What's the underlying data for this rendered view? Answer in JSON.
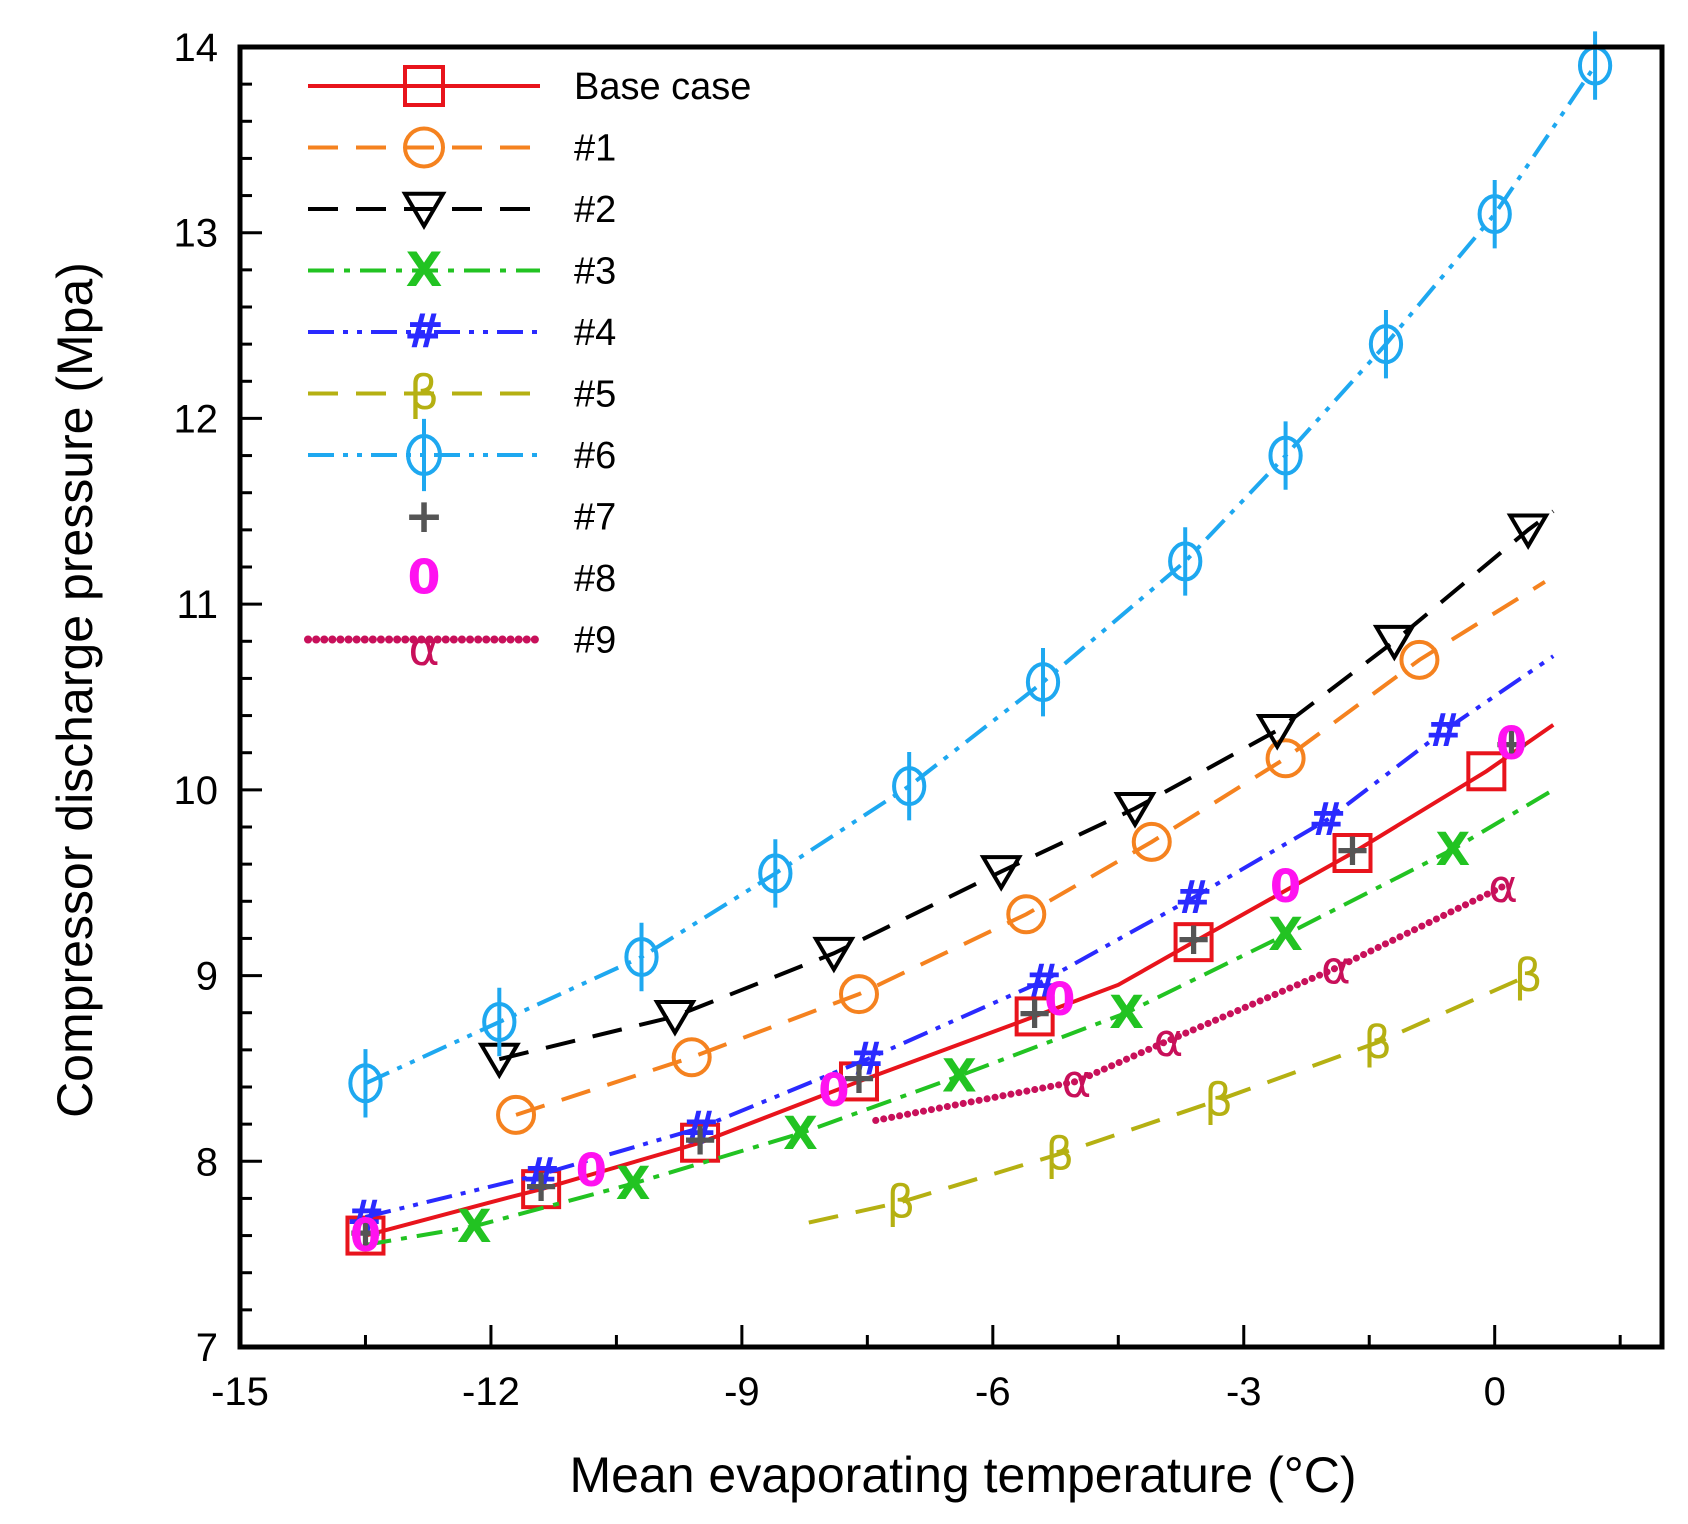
{
  "chart_data": {
    "type": "line",
    "xlabel": "Mean evaporating temperature (°C)",
    "ylabel": "Compressor discharge pressure (Mpa)",
    "xlim": [
      -15,
      2
    ],
    "ylim": [
      7,
      14
    ],
    "xticks": [
      -15,
      -12,
      -9,
      -6,
      -3,
      0
    ],
    "yticks": [
      7,
      8,
      9,
      10,
      11,
      12,
      13,
      14
    ],
    "grid": false,
    "legend_position": "top-left",
    "series": [
      {
        "name": "Base case",
        "color": "#e8141c",
        "dash": "solid",
        "marker": "square",
        "line": [
          [
            -13.5,
            7.6
          ],
          [
            -12,
            7.78
          ],
          [
            -11.4,
            7.85
          ],
          [
            -9.5,
            8.1
          ],
          [
            -7.6,
            8.43
          ],
          [
            -5.5,
            8.78
          ],
          [
            -4.5,
            8.95
          ],
          [
            -3.6,
            9.18
          ],
          [
            -1.7,
            9.66
          ],
          [
            -0.1,
            10.1
          ],
          [
            0.7,
            10.35
          ]
        ],
        "markers": [
          [
            -13.5,
            7.6
          ],
          [
            -11.4,
            7.85
          ],
          [
            -9.5,
            8.1
          ],
          [
            -7.6,
            8.43
          ],
          [
            -5.5,
            8.78
          ],
          [
            -3.6,
            9.18
          ],
          [
            -1.7,
            9.66
          ],
          [
            -0.1,
            10.1
          ]
        ]
      },
      {
        "name": "#1",
        "color": "#f5821f",
        "dash": "long",
        "marker": "circle",
        "line": [
          [
            -11.7,
            8.25
          ],
          [
            -9.6,
            8.56
          ],
          [
            -7.6,
            8.9
          ],
          [
            -5.6,
            9.33
          ],
          [
            -4.1,
            9.72
          ],
          [
            -2.5,
            10.17
          ],
          [
            -0.9,
            10.7
          ],
          [
            0.6,
            11.12
          ]
        ],
        "markers": [
          [
            -11.7,
            8.25
          ],
          [
            -9.6,
            8.56
          ],
          [
            -7.6,
            8.9
          ],
          [
            -5.6,
            9.33
          ],
          [
            -4.1,
            9.72
          ],
          [
            -2.5,
            10.17
          ],
          [
            -0.9,
            10.7
          ]
        ]
      },
      {
        "name": "#2",
        "color": "#000000",
        "dash": "long",
        "marker": "triangle-down",
        "line": [
          [
            -11.9,
            8.55
          ],
          [
            -9.8,
            8.78
          ],
          [
            -7.9,
            9.12
          ],
          [
            -5.9,
            9.56
          ],
          [
            -4.3,
            9.9
          ],
          [
            -2.6,
            10.32
          ],
          [
            -1.2,
            10.8
          ],
          [
            0.4,
            11.4
          ],
          [
            0.7,
            11.5
          ]
        ],
        "markers": [
          [
            -11.9,
            8.55
          ],
          [
            -9.8,
            8.78
          ],
          [
            -7.9,
            9.12
          ],
          [
            -5.9,
            9.56
          ],
          [
            -4.3,
            9.9
          ],
          [
            -2.6,
            10.32
          ],
          [
            -1.2,
            10.8
          ],
          [
            0.4,
            11.4
          ]
        ]
      },
      {
        "name": "#3",
        "color": "#22c322",
        "dash": "dashdot",
        "marker": "X",
        "glyph": "X",
        "line": [
          [
            -13.5,
            7.55
          ],
          [
            -12.2,
            7.65
          ],
          [
            -10.3,
            7.88
          ],
          [
            -8.3,
            8.15
          ],
          [
            -6.4,
            8.46
          ],
          [
            -4.4,
            8.8
          ],
          [
            -2.5,
            9.22
          ],
          [
            -0.5,
            9.68
          ],
          [
            0.7,
            10.0
          ]
        ],
        "markers": [
          [
            -12.2,
            7.65
          ],
          [
            -10.3,
            7.88
          ],
          [
            -8.3,
            8.15
          ],
          [
            -6.4,
            8.46
          ],
          [
            -4.4,
            8.8
          ],
          [
            -2.5,
            9.22
          ],
          [
            -0.5,
            9.68
          ]
        ]
      },
      {
        "name": "#4",
        "color": "#2a2aff",
        "dash": "dashdotdot",
        "marker": "hash",
        "glyph": "#",
        "line": [
          [
            -13.5,
            7.7
          ],
          [
            -11.4,
            7.93
          ],
          [
            -9.5,
            8.18
          ],
          [
            -7.5,
            8.55
          ],
          [
            -5.4,
            8.97
          ],
          [
            -3.6,
            9.42
          ],
          [
            -2.0,
            9.84
          ],
          [
            -0.6,
            10.32
          ],
          [
            0.7,
            10.72
          ]
        ],
        "markers": [
          [
            -13.5,
            7.7
          ],
          [
            -11.4,
            7.93
          ],
          [
            -9.5,
            8.18
          ],
          [
            -7.5,
            8.55
          ],
          [
            -5.4,
            8.97
          ],
          [
            -3.6,
            9.42
          ],
          [
            -2.0,
            9.84
          ],
          [
            -0.6,
            10.32
          ]
        ]
      },
      {
        "name": "#5",
        "color": "#b5b012",
        "dash": "long",
        "marker": "beta",
        "glyph": "β",
        "line": [
          [
            -8.2,
            7.67
          ],
          [
            -7.1,
            7.78
          ],
          [
            -5.2,
            8.04
          ],
          [
            -3.3,
            8.33
          ],
          [
            -1.4,
            8.64
          ],
          [
            0.4,
            9.0
          ]
        ],
        "markers": [
          [
            -7.1,
            7.78
          ],
          [
            -5.2,
            8.04
          ],
          [
            -3.3,
            8.33
          ],
          [
            -1.4,
            8.64
          ],
          [
            0.4,
            9.0
          ]
        ]
      },
      {
        "name": "#6",
        "color": "#1ea8f0",
        "dash": "dashdotdot",
        "marker": "phi",
        "line": [
          [
            -13.5,
            8.42
          ],
          [
            -11.9,
            8.75
          ],
          [
            -10.2,
            9.1
          ],
          [
            -8.6,
            9.55
          ],
          [
            -7.0,
            10.02
          ],
          [
            -5.4,
            10.58
          ],
          [
            -3.7,
            11.23
          ],
          [
            -2.5,
            11.8
          ],
          [
            -1.3,
            12.4
          ],
          [
            0.0,
            13.1
          ],
          [
            1.2,
            13.9
          ]
        ],
        "markers": [
          [
            -13.5,
            8.42
          ],
          [
            -11.9,
            8.75
          ],
          [
            -10.2,
            9.1
          ],
          [
            -8.6,
            9.55
          ],
          [
            -7.0,
            10.02
          ],
          [
            -5.4,
            10.58
          ],
          [
            -3.7,
            11.23
          ],
          [
            -2.5,
            11.8
          ],
          [
            -1.3,
            12.4
          ],
          [
            0.0,
            13.1
          ],
          [
            1.2,
            13.9
          ]
        ]
      },
      {
        "name": "#7",
        "color": "#555555",
        "dash": "none",
        "marker": "plus",
        "glyph": "+",
        "markers": [
          [
            -13.5,
            7.62
          ],
          [
            -11.4,
            7.87
          ],
          [
            -9.5,
            8.12
          ],
          [
            -7.6,
            8.45
          ],
          [
            -5.5,
            8.8
          ],
          [
            -3.6,
            9.2
          ],
          [
            -1.7,
            9.68
          ],
          [
            0.2,
            10.25
          ]
        ]
      },
      {
        "name": "#8",
        "color": "#ff12f0",
        "dash": "none",
        "marker": "zero",
        "glyph": "0",
        "markers": [
          [
            -13.5,
            7.6
          ],
          [
            -10.8,
            7.95
          ],
          [
            -7.9,
            8.38
          ],
          [
            -5.2,
            8.87
          ],
          [
            -2.5,
            9.48
          ],
          [
            0.2,
            10.25
          ]
        ]
      },
      {
        "name": "#9",
        "color": "#c8105a",
        "dash": "dotted",
        "marker": "alpha",
        "glyph": "α",
        "line": [
          [
            -7.4,
            8.22
          ],
          [
            -5.0,
            8.43
          ],
          [
            -3.9,
            8.65
          ],
          [
            -1.9,
            9.04
          ],
          [
            0.1,
            9.48
          ]
        ],
        "markers": [
          [
            -5.0,
            8.43
          ],
          [
            -3.9,
            8.65
          ],
          [
            -1.9,
            9.04
          ],
          [
            0.1,
            9.48
          ]
        ]
      }
    ]
  }
}
